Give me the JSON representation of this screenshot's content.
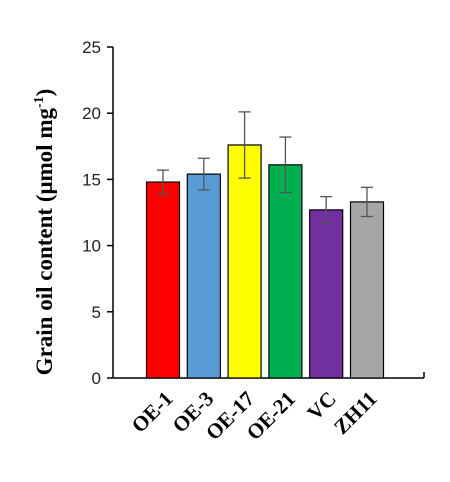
{
  "chart_data": {
    "type": "bar",
    "title": "",
    "xlabel": "",
    "ylabel": {
      "main": "Grain oil content (μmol mg",
      "sup": "-1",
      "close": ")"
    },
    "ylim": [
      0,
      25
    ],
    "yticks": [
      "0",
      "5",
      "10",
      "15",
      "20",
      "25"
    ],
    "categories": [
      "OE-1",
      "OE-3",
      "OE-17",
      "OE-21",
      "VC",
      "ZH11"
    ],
    "values": [
      14.8,
      15.4,
      17.6,
      16.1,
      12.7,
      13.3
    ],
    "errors": [
      0.9,
      1.2,
      2.5,
      2.1,
      1.0,
      1.1
    ],
    "colors": [
      "#ff0000",
      "#5b9bd5",
      "#ffff00",
      "#00b050",
      "#7030a0",
      "#a6a6a6"
    ],
    "grid": false,
    "legend": "none"
  }
}
